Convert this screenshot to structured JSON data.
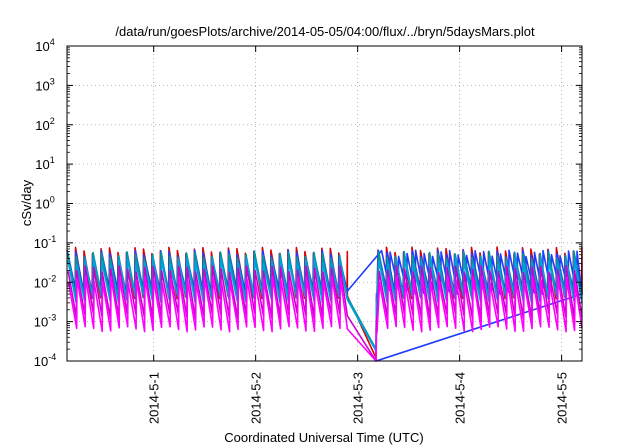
{
  "chart_data": {
    "type": "line",
    "title": "/data/run/goesPlots/archive/2014-05-05/04:00/flux/../bryn/5daysMars.plot",
    "xlabel": "Coordinated Universal Time (UTC)",
    "ylabel": "cSv/day",
    "y_scale": "log",
    "ylim": [
      0.0001,
      10000
    ],
    "y_ticks": [
      {
        "value": 0.0001,
        "base": "10",
        "exp": "-4"
      },
      {
        "value": 0.001,
        "base": "10",
        "exp": "-3"
      },
      {
        "value": 0.01,
        "base": "10",
        "exp": "-2"
      },
      {
        "value": 0.1,
        "base": "10",
        "exp": "-1"
      },
      {
        "value": 1,
        "base": "10",
        "exp": "0"
      },
      {
        "value": 10,
        "base": "10",
        "exp": "1"
      },
      {
        "value": 100,
        "base": "10",
        "exp": "2"
      },
      {
        "value": 1000,
        "base": "10",
        "exp": "3"
      },
      {
        "value": 10000,
        "base": "10",
        "exp": "4"
      }
    ],
    "xlim": [
      -0.85,
      4.2
    ],
    "x_ticks": [
      {
        "value": 0,
        "label": "2014-5-1"
      },
      {
        "value": 1,
        "label": "2014-5-2"
      },
      {
        "value": 2,
        "label": "2014-5-3"
      },
      {
        "value": 3,
        "label": "2014-5-4"
      },
      {
        "value": 4,
        "label": "2014-5-5"
      }
    ],
    "grid": true,
    "sawtooth": {
      "period_days": 0.0833,
      "first_peak_day": -0.85,
      "dip_start_day": 1.9,
      "dip_end_day": 2.18,
      "recovery_day": 2.2
    },
    "series": [
      {
        "color": "#dd0000",
        "peak": 0.065,
        "trough": 0.0045,
        "dip_min": 0.00012
      },
      {
        "color": "#1f3cff",
        "peak": 0.055,
        "trough": 0.0058,
        "dip_min": 0.0001
      },
      {
        "color": "#009999",
        "peak": 0.05,
        "trough": 0.0042,
        "dip_min": 0.0002
      },
      {
        "color": "#00a0dd",
        "peak": 0.035,
        "trough": 0.0036,
        "dip_min": 0.00018
      },
      {
        "color": "#cc00cc",
        "peak": 0.022,
        "trough": 0.0014,
        "dip_min": 0.0001
      },
      {
        "color": "#ff00ff",
        "peak": 0.012,
        "trough": 0.00065,
        "dip_min": 0.0001
      }
    ]
  }
}
